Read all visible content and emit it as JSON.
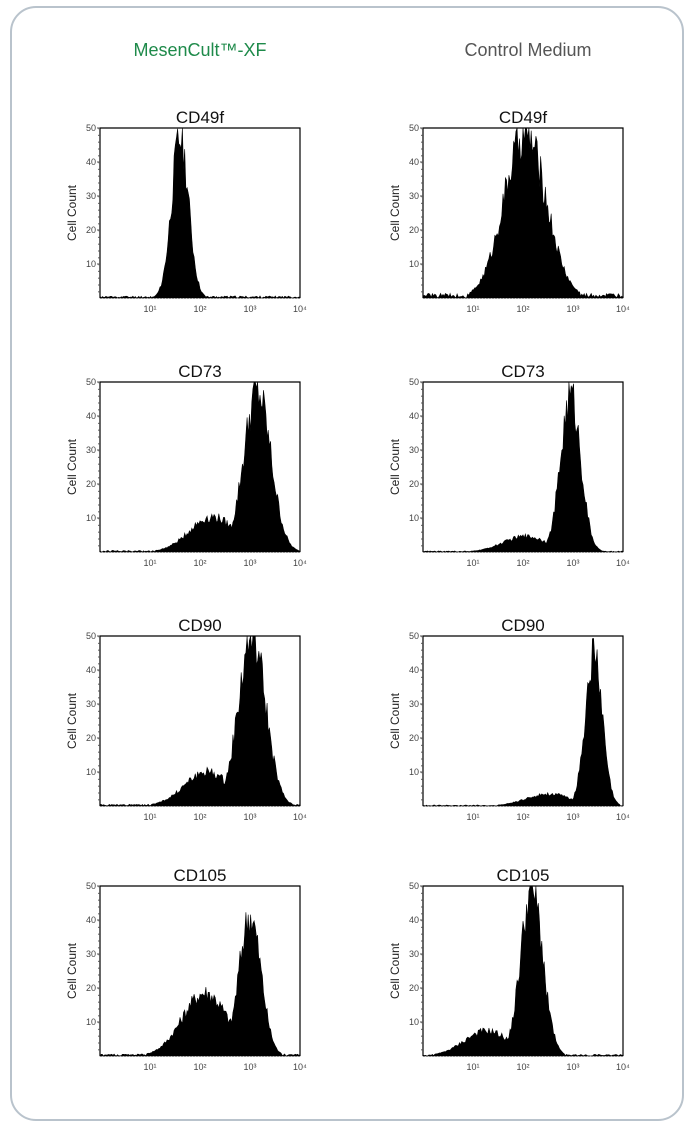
{
  "headers": {
    "left": "MesenCult™-XF",
    "right": "Control Medium"
  },
  "colors": {
    "left_header": "#1e8a4a",
    "right_header": "#555555",
    "frame": "#b9c3cc",
    "histogram": "#000000"
  },
  "chart_data": [
    {
      "type": "area",
      "title": "CD49f",
      "column": "MesenCult™-XF",
      "ylabel": "Cell Count",
      "ylim": [
        0,
        50
      ],
      "yticks": [
        10,
        20,
        30,
        40,
        50
      ],
      "x_scale": "log",
      "xlim": [
        1,
        10000
      ],
      "xticks": [
        "10¹",
        "10²",
        "10³",
        "10⁴"
      ],
      "peak_x": 40,
      "peak_y": 47,
      "spread": 0.17,
      "left_tail": 0,
      "noise_floor": 0.6
    },
    {
      "type": "area",
      "title": "CD49f",
      "column": "Control Medium",
      "ylabel": "Cell Count",
      "ylim": [
        0,
        50
      ],
      "yticks": [
        10,
        20,
        30,
        40,
        50
      ],
      "x_scale": "log",
      "xlim": [
        1,
        10000
      ],
      "xticks": [
        "10¹",
        "10²",
        "10³",
        "10⁴"
      ],
      "peak_x": 110,
      "peak_y": 48,
      "spread": 0.42,
      "left_tail": 0,
      "noise_floor": 1.4
    },
    {
      "type": "area",
      "title": "CD73",
      "column": "MesenCult™-XF",
      "ylabel": "Cell Count",
      "ylim": [
        0,
        50
      ],
      "yticks": [
        10,
        20,
        30,
        40,
        50
      ],
      "x_scale": "log",
      "xlim": [
        1,
        10000
      ],
      "xticks": [
        "10¹",
        "10²",
        "10³",
        "10⁴"
      ],
      "peak_x": 1400,
      "peak_y": 47,
      "spread": 0.27,
      "left_tail": 0.22,
      "noise_floor": 0.5
    },
    {
      "type": "area",
      "title": "CD73",
      "column": "Control Medium",
      "ylabel": "Cell Count",
      "ylim": [
        0,
        50
      ],
      "yticks": [
        10,
        20,
        30,
        40,
        50
      ],
      "x_scale": "log",
      "xlim": [
        1,
        10000
      ],
      "xticks": [
        "10¹",
        "10²",
        "10³",
        "10⁴"
      ],
      "peak_x": 900,
      "peak_y": 46,
      "spread": 0.2,
      "left_tail": 0.1,
      "noise_floor": 0.3
    },
    {
      "type": "area",
      "title": "CD90",
      "column": "MesenCult™-XF",
      "ylabel": "Cell Count",
      "ylim": [
        0,
        50
      ],
      "yticks": [
        10,
        20,
        30,
        40,
        50
      ],
      "x_scale": "log",
      "xlim": [
        1,
        10000
      ],
      "xticks": [
        "10¹",
        "10²",
        "10³",
        "10⁴"
      ],
      "peak_x": 1100,
      "peak_y": 50,
      "spread": 0.27,
      "left_tail": 0.2,
      "noise_floor": 0.5
    },
    {
      "type": "area",
      "title": "CD90",
      "column": "Control Medium",
      "ylabel": "Cell Count",
      "ylim": [
        0,
        50
      ],
      "yticks": [
        10,
        20,
        30,
        40,
        50
      ],
      "x_scale": "log",
      "xlim": [
        1,
        10000
      ],
      "xticks": [
        "10¹",
        "10²",
        "10³",
        "10⁴"
      ],
      "peak_x": 2600,
      "peak_y": 44,
      "spread": 0.17,
      "left_tail": 0.08,
      "noise_floor": 0.3
    },
    {
      "type": "area",
      "title": "CD105",
      "column": "MesenCult™-XF",
      "ylabel": "Cell Count",
      "ylim": [
        0,
        50
      ],
      "yticks": [
        10,
        20,
        30,
        40,
        50
      ],
      "x_scale": "log",
      "xlim": [
        1,
        10000
      ],
      "xticks": [
        "10¹",
        "10²",
        "10³",
        "10⁴"
      ],
      "peak_x": 1000,
      "peak_y": 41,
      "spread": 0.22,
      "left_tail": 0.45,
      "noise_floor": 0.6
    },
    {
      "type": "area",
      "title": "CD105",
      "column": "Control Medium",
      "ylabel": "Cell Count",
      "ylim": [
        0,
        50
      ],
      "yticks": [
        10,
        20,
        30,
        40,
        50
      ],
      "x_scale": "log",
      "xlim": [
        1,
        10000
      ],
      "xticks": [
        "10¹",
        "10²",
        "10³",
        "10⁴"
      ],
      "peak_x": 150,
      "peak_y": 49,
      "spread": 0.22,
      "left_tail": 0.15,
      "noise_floor": 0.5
    }
  ]
}
